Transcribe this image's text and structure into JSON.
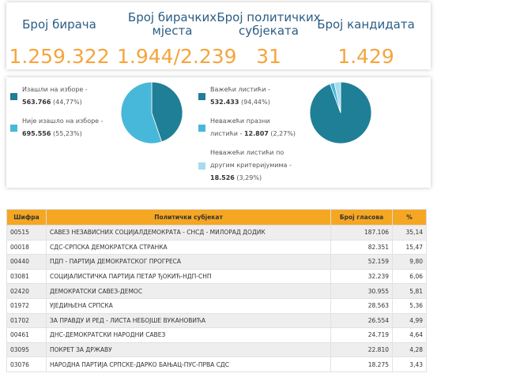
{
  "stats": [
    {
      "label": "Број бирача",
      "value": "1.259.322"
    },
    {
      "label": "Број бирачких мјеста",
      "value": "1.944/2.239"
    },
    {
      "label": "Број политичких субјеката",
      "value": "31"
    },
    {
      "label": "Број кандидата",
      "value": "1.429"
    }
  ],
  "pies": [
    {
      "type": "pie",
      "segments": [
        {
          "label": "Изашли на изборе -",
          "count": "563.766",
          "value": 44.77,
          "value_label": "(44,77%)",
          "color": "#1f7f96"
        },
        {
          "label": "Није изашло на изборе -",
          "count": "695.556",
          "value": 55.23,
          "value_label": "(55,23%)",
          "color": "#47b8d9"
        }
      ]
    },
    {
      "type": "pie",
      "segments": [
        {
          "label": "Важећи листићи -",
          "count": "532.433",
          "value": 94.44,
          "value_label": "(94,44%)",
          "color": "#1f7f96"
        },
        {
          "label": "Неважећи празни листићи -",
          "count": "12.807",
          "value": 2.27,
          "value_label": "(2,27%)",
          "color": "#47b8d9"
        },
        {
          "label": "Неважећи листићи по другим критеријумима -",
          "count": "18.526",
          "value": 3.29,
          "value_label": "(3,29%)",
          "color": "#a6dcec"
        }
      ]
    }
  ],
  "table": {
    "headers": [
      "Шифра",
      "Политички субјекат",
      "Број гласова",
      "%"
    ],
    "rows": [
      [
        "00515",
        "САВЕЗ НЕЗАВИСНИХ СОЦИЈАЛДЕМОКРАТА - СНСД - МИЛОРАД ДОДИК",
        "187.106",
        "35,14"
      ],
      [
        "00018",
        "СДС-СРПСКА ДЕМОКРАТСКА СТРАНКА",
        "82.351",
        "15,47"
      ],
      [
        "00440",
        "ПДП - ПАРТИЈА ДЕМОКРАТСКОГ ПРОГРЕСА",
        "52.159",
        "9,80"
      ],
      [
        "03081",
        "СОЦИЈАЛИСТИЧКА ПАРТИЈА ПЕТАР ЂОКИЋ-НДП-СНП",
        "32.239",
        "6,06"
      ],
      [
        "02420",
        "ДЕМОКРАТСКИ САВЕЗ-ДЕМОС",
        "30.955",
        "5,81"
      ],
      [
        "01972",
        "УЈЕДИЊЕНА СРПСКА",
        "28.563",
        "5,36"
      ],
      [
        "01702",
        "ЗА ПРАВДУ И РЕД - ЛИСТА НЕБОЈШЕ ВУКАНОВИЋА",
        "26.554",
        "4,99"
      ],
      [
        "00461",
        "ДНС-ДЕМОКРАТСКИ НАРОДНИ САВЕЗ",
        "24.719",
        "4,64"
      ],
      [
        "03095",
        "ПОКРЕТ ЗА ДРЖАВУ",
        "22.810",
        "4,28"
      ],
      [
        "03076",
        "НАРОДНА ПАРТИЈА СРПСКЕ-ДАРКО БАЊАЦ-ПУС-ПРВА СДС",
        "18.275",
        "3,43"
      ]
    ]
  }
}
